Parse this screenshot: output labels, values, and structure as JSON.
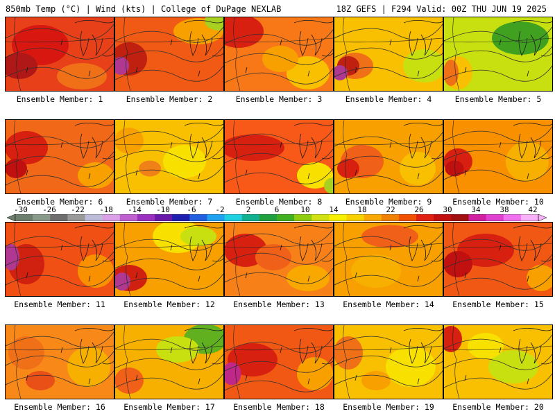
{
  "header": {
    "left": "850mb Temp (°C) | Wind (kts) | College of DuPage NEXLAB",
    "right": "18Z GEFS | F294 Valid: 00Z THU JUN 19 2025"
  },
  "colorbar": {
    "ticks": [
      "-30",
      "-26",
      "-22",
      "-18",
      "-14",
      "-10",
      "-6",
      "-2",
      "2",
      "6",
      "10",
      "14",
      "18",
      "22",
      "26",
      "30",
      "34",
      "38",
      "42"
    ],
    "colors": [
      "#6f7f6f",
      "#8a9a8a",
      "#6e6e6e",
      "#9a9a9a",
      "#bcbcd8",
      "#d9a0e6",
      "#c060d0",
      "#9b30c0",
      "#6a1aa8",
      "#2020b0",
      "#2060e0",
      "#20a0f0",
      "#20d0e0",
      "#10b090",
      "#20a040",
      "#40b020",
      "#90cc10",
      "#d0e010",
      "#f6f000",
      "#f8d000",
      "#f8a800",
      "#f08000",
      "#f05000",
      "#e02010",
      "#c01010",
      "#a01010",
      "#d020a0",
      "#e040d0",
      "#f070f0",
      "#f8b0f8"
    ]
  },
  "panels": [
    {
      "label": "Ensemble Member: 1",
      "base": "#e84018",
      "blobs": [
        [
          "#d81810",
          50,
          40,
          70,
          50
        ],
        [
          "#f07018",
          110,
          85,
          60,
          30
        ],
        [
          "#b01818",
          20,
          70,
          40,
          30
        ]
      ]
    },
    {
      "label": "Ensemble Member: 2",
      "base": "#f05a14",
      "blobs": [
        [
          "#f8a000",
          120,
          20,
          60,
          30
        ],
        [
          "#a8d020",
          150,
          5,
          30,
          20
        ],
        [
          "#c02010",
          20,
          60,
          40,
          40
        ],
        [
          "#b03890",
          8,
          70,
          12,
          18
        ]
      ]
    },
    {
      "label": "Ensemble Member: 3",
      "base": "#f87818",
      "blobs": [
        [
          "#d82010",
          20,
          20,
          60,
          40
        ],
        [
          "#f8c000",
          120,
          80,
          50,
          40
        ],
        [
          "#f8a000",
          80,
          60,
          40,
          30
        ]
      ]
    },
    {
      "label": "Ensemble Member: 4",
      "base": "#f8c000",
      "blobs": [
        [
          "#c8e010",
          130,
          70,
          50,
          40
        ],
        [
          "#f07018",
          30,
          70,
          40,
          30
        ],
        [
          "#c02010",
          20,
          70,
          20,
          20
        ],
        [
          "#b03890",
          8,
          80,
          10,
          14
        ]
      ]
    },
    {
      "label": "Ensemble Member: 5",
      "base": "#c8e010",
      "blobs": [
        [
          "#40a020",
          110,
          30,
          70,
          40
        ],
        [
          "#f8c000",
          20,
          80,
          30,
          40
        ],
        [
          "#f07018",
          10,
          80,
          10,
          30
        ]
      ]
    },
    {
      "label": "Ensemble Member: 6",
      "base": "#f06818",
      "blobs": [
        [
          "#d82010",
          30,
          40,
          50,
          40
        ],
        [
          "#f8a000",
          130,
          80,
          40,
          30
        ],
        [
          "#c01010",
          15,
          70,
          20,
          20
        ]
      ]
    },
    {
      "label": "Ensemble Member: 7",
      "base": "#f8c000",
      "blobs": [
        [
          "#f8e000",
          100,
          60,
          50,
          40
        ],
        [
          "#f08018",
          50,
          70,
          20,
          15
        ],
        [
          "#f8a000",
          20,
          30,
          30,
          30
        ]
      ]
    },
    {
      "label": "Ensemble Member: 8",
      "base": "#f85818",
      "blobs": [
        [
          "#d82010",
          40,
          40,
          80,
          30
        ],
        [
          "#f8e000",
          130,
          80,
          40,
          30
        ],
        [
          "#a8d020",
          155,
          95,
          12,
          15
        ]
      ]
    },
    {
      "label": "Ensemble Member: 9",
      "base": "#f8a000",
      "blobs": [
        [
          "#f06018",
          40,
          60,
          50,
          40
        ],
        [
          "#f8c000",
          120,
          70,
          40,
          40
        ],
        [
          "#d82010",
          20,
          70,
          20,
          20
        ]
      ]
    },
    {
      "label": "Ensemble Member: 10",
      "base": "#f89000",
      "blobs": [
        [
          "#d82010",
          20,
          60,
          30,
          30
        ],
        [
          "#f8b000",
          120,
          60,
          50,
          50
        ],
        [
          "#c01010",
          15,
          70,
          15,
          15
        ]
      ]
    },
    {
      "label": "Ensemble Member: 11",
      "base": "#f05014",
      "blobs": [
        [
          "#d02010",
          30,
          60,
          40,
          50
        ],
        [
          "#f89000",
          130,
          70,
          40,
          40
        ],
        [
          "#b03890",
          8,
          50,
          12,
          30
        ]
      ]
    },
    {
      "label": "Ensemble Member: 12",
      "base": "#f8a000",
      "blobs": [
        [
          "#f8e000",
          90,
          20,
          60,
          40
        ],
        [
          "#c8e010",
          120,
          20,
          40,
          20
        ],
        [
          "#d02010",
          20,
          80,
          40,
          30
        ],
        [
          "#b03890",
          10,
          85,
          12,
          18
        ]
      ]
    },
    {
      "label": "Ensemble Member: 13",
      "base": "#f88018",
      "blobs": [
        [
          "#d82010",
          30,
          40,
          50,
          40
        ],
        [
          "#f8a800",
          120,
          80,
          50,
          30
        ],
        [
          "#f06018",
          70,
          50,
          40,
          30
        ]
      ]
    },
    {
      "label": "Ensemble Member: 14",
      "base": "#f8a000",
      "blobs": [
        [
          "#f06018",
          80,
          20,
          70,
          25
        ],
        [
          "#f8b000",
          60,
          70,
          60,
          40
        ]
      ]
    },
    {
      "label": "Ensemble Member: 15",
      "base": "#f05814",
      "blobs": [
        [
          "#d82010",
          60,
          40,
          70,
          40
        ],
        [
          "#f8a000",
          140,
          80,
          30,
          30
        ],
        [
          "#c01010",
          20,
          60,
          30,
          30
        ]
      ]
    },
    {
      "label": "Ensemble Member: 16",
      "base": "#f88818",
      "blobs": [
        [
          "#f07018",
          30,
          40,
          40,
          40
        ],
        [
          "#f8b000",
          120,
          60,
          50,
          50
        ],
        [
          "#e85018",
          50,
          80,
          30,
          20
        ]
      ]
    },
    {
      "label": "Ensemble Member: 17",
      "base": "#f8b000",
      "blobs": [
        [
          "#60b020",
          130,
          20,
          50,
          35
        ],
        [
          "#c8e010",
          90,
          35,
          50,
          30
        ],
        [
          "#f06018",
          20,
          80,
          30,
          30
        ]
      ]
    },
    {
      "label": "Ensemble Member: 18",
      "base": "#f05814",
      "blobs": [
        [
          "#d82010",
          40,
          50,
          60,
          40
        ],
        [
          "#f8a000",
          130,
          70,
          40,
          40
        ],
        [
          "#c02888",
          10,
          70,
          15,
          25
        ]
      ]
    },
    {
      "label": "Ensemble Member: 19",
      "base": "#f8c000",
      "blobs": [
        [
          "#f8e000",
          110,
          60,
          60,
          50
        ],
        [
          "#f07018",
          20,
          40,
          30,
          40
        ],
        [
          "#f8a000",
          60,
          80,
          30,
          20
        ]
      ]
    },
    {
      "label": "Ensemble Member: 20",
      "base": "#f8c000",
      "blobs": [
        [
          "#c8e010",
          100,
          60,
          60,
          40
        ],
        [
          "#f8e000",
          60,
          30,
          40,
          30
        ],
        [
          "#d82010",
          10,
          20,
          20,
          30
        ]
      ]
    }
  ]
}
